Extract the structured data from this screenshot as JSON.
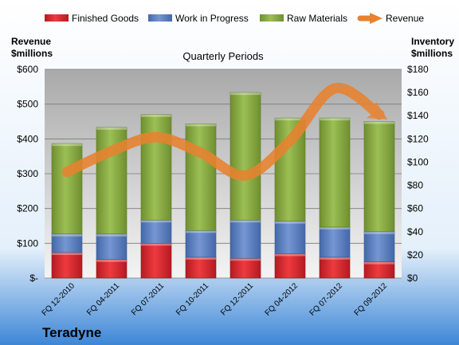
{
  "company": "Teradyne",
  "chart_data": {
    "type": "bar",
    "stacked": true,
    "subtitle": "Quarterly Periods",
    "categories": [
      "FQ 12-2010",
      "FQ 04-2011",
      "FQ 07-2011",
      "FQ 10-2011",
      "FQ 12-2011",
      "FQ 04-2012",
      "FQ 07-2012",
      "FQ 09-2012"
    ],
    "left_axis": {
      "label_line1": "Revenue",
      "label_line2": "$millions",
      "ylim": [
        0,
        600
      ],
      "ticks": [
        0,
        100,
        200,
        300,
        400,
        500,
        600
      ],
      "tick_labels": [
        "$-",
        "$100",
        "$200",
        "$300",
        "$400",
        "$500",
        "$600"
      ]
    },
    "right_axis": {
      "label_line1": "Inventory",
      "label_line2": "$millions",
      "ylim": [
        0,
        180
      ],
      "ticks": [
        0,
        20,
        40,
        60,
        80,
        100,
        120,
        140,
        160,
        180
      ],
      "tick_labels": [
        "$0",
        "$20",
        "$40",
        "$60",
        "$80",
        "$100",
        "$120",
        "$140",
        "$160",
        "$180"
      ]
    },
    "series": [
      {
        "name": "Finished Goods",
        "axis": "right",
        "color": "#e0202a",
        "values": [
          22,
          16,
          30,
          18,
          17,
          21,
          18,
          14
        ]
      },
      {
        "name": "Work in Progress",
        "axis": "right",
        "color": "#5b80c4",
        "values": [
          16,
          22,
          20,
          23,
          33,
          28,
          26,
          26
        ]
      },
      {
        "name": "Raw Materials",
        "axis": "right",
        "color": "#8aad40",
        "values": [
          78,
          92,
          91,
          92,
          110,
          89,
          94,
          95
        ]
      }
    ],
    "line_series": {
      "name": "Revenue",
      "axis": "left",
      "color": "#e8822f",
      "values": [
        305,
        365,
        405,
        360,
        295,
        395,
        545,
        470
      ]
    },
    "grid": true,
    "legend_position": "top"
  }
}
